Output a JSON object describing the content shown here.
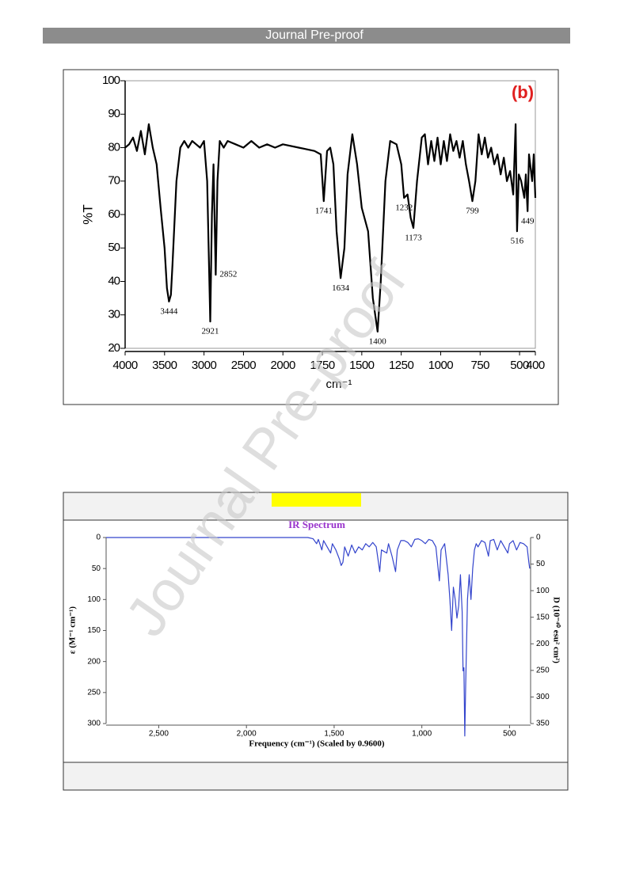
{
  "header": {
    "title": "Journal Pre-proof"
  },
  "watermark": "Journal Pre-proof",
  "chart_data": [
    {
      "type": "line",
      "title": "(b)",
      "xlabel": "cm⁻¹",
      "ylabel": "%T",
      "xlim": [
        4000,
        400
      ],
      "xscale_break": 2000,
      "xscale_ratio": 2,
      "xticks": [
        4000,
        3500,
        3000,
        2500,
        2000,
        1750,
        1500,
        1250,
        1000,
        750,
        500,
        400
      ],
      "ylim": [
        20,
        100
      ],
      "yticks": [
        20,
        30,
        40,
        50,
        60,
        70,
        80,
        90,
        100
      ],
      "x": [
        4000,
        3950,
        3900,
        3850,
        3800,
        3750,
        3700,
        3650,
        3600,
        3550,
        3500,
        3470,
        3444,
        3420,
        3400,
        3350,
        3300,
        3250,
        3200,
        3150,
        3100,
        3050,
        3000,
        2960,
        2921,
        2900,
        2880,
        2852,
        2830,
        2800,
        2750,
        2700,
        2600,
        2500,
        2400,
        2300,
        2200,
        2100,
        2000,
        1900,
        1800,
        1760,
        1741,
        1720,
        1700,
        1680,
        1660,
        1634,
        1610,
        1590,
        1560,
        1530,
        1500,
        1460,
        1430,
        1400,
        1380,
        1350,
        1320,
        1280,
        1250,
        1232,
        1210,
        1190,
        1173,
        1150,
        1120,
        1100,
        1080,
        1060,
        1040,
        1020,
        1000,
        980,
        960,
        940,
        920,
        900,
        880,
        860,
        840,
        820,
        799,
        780,
        760,
        740,
        720,
        700,
        680,
        660,
        640,
        620,
        600,
        580,
        560,
        540,
        525,
        516,
        505,
        490,
        470,
        460,
        449,
        440,
        420,
        410,
        400
      ],
      "series": [
        {
          "name": "%T",
          "color": "#000000",
          "values": [
            80,
            81,
            83,
            79,
            85,
            78,
            87,
            80,
            75,
            62,
            50,
            38,
            34,
            36,
            45,
            70,
            80,
            82,
            80,
            82,
            81,
            80,
            82,
            70,
            28,
            60,
            75,
            42,
            70,
            82,
            80,
            82,
            81,
            80,
            82,
            80,
            81,
            80,
            81,
            80,
            79,
            78,
            64,
            79,
            80,
            75,
            55,
            41,
            50,
            72,
            84,
            75,
            62,
            55,
            35,
            25,
            40,
            70,
            82,
            81,
            75,
            65,
            66,
            59,
            56,
            70,
            83,
            84,
            75,
            82,
            76,
            83,
            75,
            82,
            76,
            84,
            79,
            82,
            77,
            82,
            75,
            70,
            64,
            70,
            84,
            78,
            83,
            77,
            80,
            75,
            78,
            72,
            77,
            70,
            73,
            66,
            87,
            55,
            72,
            70,
            65,
            72,
            61,
            78,
            70,
            78,
            65
          ]
        }
      ],
      "annotations": [
        3444,
        2921,
        2852,
        1741,
        1634,
        1400,
        1232,
        1173,
        799,
        516,
        449
      ]
    },
    {
      "type": "line",
      "title": "IR Spectrum",
      "xlabel": "Frequency (cm⁻¹) (Scaled by 0.9600)",
      "ylabel": "ε (M⁻¹ cm⁻¹)",
      "y2label": "D (10⁻⁴⁰ esu² cm²)",
      "xlim": [
        2800,
        380
      ],
      "xticks": [
        {
          "value": 2500,
          "label": "2,500"
        },
        {
          "value": 2000,
          "label": "2,000"
        },
        {
          "value": 1500,
          "label": "1,500"
        },
        {
          "value": 1000,
          "label": "1,000"
        },
        500
      ],
      "ylim": [
        0,
        300
      ],
      "yticks": [
        0,
        50,
        100,
        150,
        200,
        250,
        300
      ],
      "y_inverted": true,
      "y2lim": [
        0,
        350
      ],
      "y2ticks": [
        0,
        50,
        100,
        150,
        200,
        250,
        300,
        350
      ],
      "x": [
        2800,
        1650,
        1620,
        1600,
        1590,
        1570,
        1560,
        1540,
        1520,
        1510,
        1490,
        1470,
        1460,
        1450,
        1440,
        1420,
        1400,
        1380,
        1360,
        1340,
        1320,
        1300,
        1280,
        1260,
        1240,
        1230,
        1200,
        1190,
        1170,
        1150,
        1140,
        1120,
        1100,
        1080,
        1060,
        1040,
        1020,
        1000,
        980,
        960,
        940,
        920,
        900,
        890,
        870,
        850,
        840,
        830,
        820,
        810,
        800,
        790,
        780,
        770,
        765,
        760,
        755,
        750,
        740,
        730,
        720,
        710,
        700,
        690,
        680,
        660,
        640,
        620,
        610,
        590,
        570,
        550,
        530,
        510,
        500,
        480,
        460,
        440,
        420,
        400,
        390,
        385
      ],
      "series": [
        {
          "name": "ε",
          "color": "#3344cc",
          "values": [
            0,
            0,
            2,
            10,
            3,
            20,
            5,
            15,
            25,
            10,
            20,
            35,
            45,
            40,
            15,
            30,
            12,
            25,
            15,
            20,
            10,
            15,
            8,
            15,
            55,
            20,
            25,
            10,
            30,
            55,
            20,
            5,
            5,
            8,
            15,
            3,
            2,
            5,
            10,
            3,
            5,
            15,
            70,
            20,
            10,
            60,
            100,
            150,
            80,
            100,
            130,
            110,
            60,
            120,
            215,
            210,
            320,
            240,
            100,
            60,
            100,
            50,
            20,
            10,
            15,
            5,
            8,
            30,
            5,
            3,
            20,
            5,
            15,
            25,
            10,
            5,
            20,
            8,
            10,
            15,
            40,
            50
          ]
        }
      ]
    }
  ]
}
